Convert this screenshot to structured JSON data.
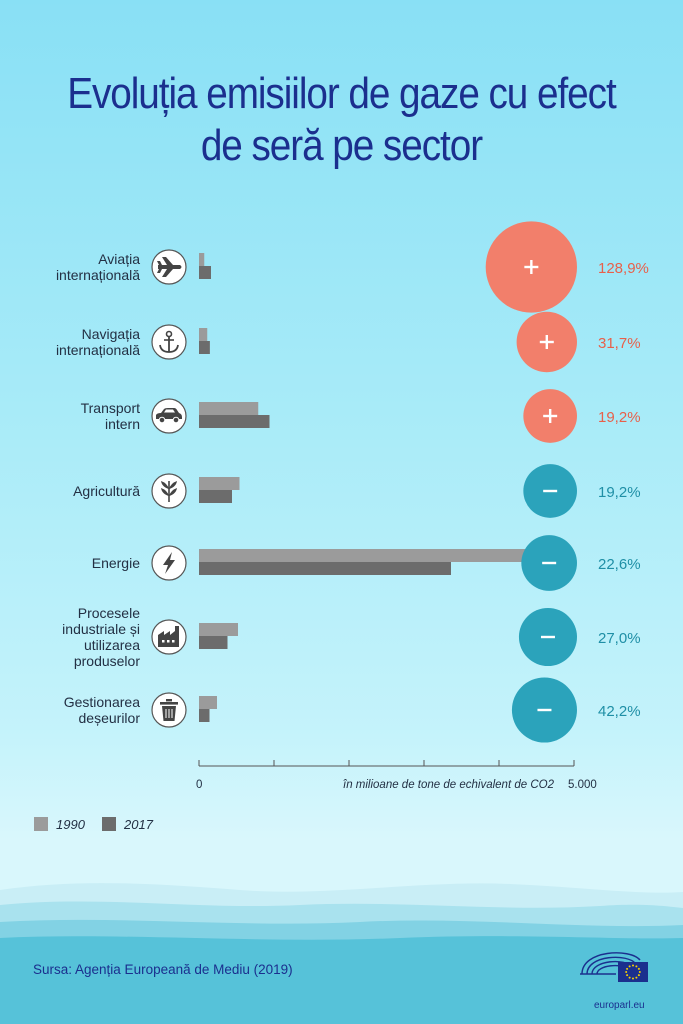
{
  "title_lines": [
    "Evoluția emisiilor de gaze cu efect",
    "de seră pe sector"
  ],
  "colors": {
    "title": "#1b2f8e",
    "bar_1990": "#9b9b9b",
    "bar_2017": "#6c6c6c",
    "increase": "#f27f6b",
    "decrease": "#2ba3bb",
    "increase_text": "#e8604a",
    "decrease_text": "#1f8fa6"
  },
  "chart_data": {
    "type": "bar",
    "orientation": "horizontal",
    "unit_label": "în milioane de tone de echivalent de CO2",
    "xlim": [
      0,
      5000
    ],
    "x_tick_labels": [
      "0",
      "5.000"
    ],
    "legend": [
      "1990",
      "2017"
    ],
    "categories": [
      {
        "name": "Aviația internațională",
        "lines": [
          "Aviația",
          "internațională"
        ],
        "icon": "airplane-icon",
        "v1990": 70,
        "v2017": 160,
        "change": "128,9%",
        "sign": "+",
        "magnitude": 128.9
      },
      {
        "name": "Navigația internațională",
        "lines": [
          "Navigația",
          "internațională"
        ],
        "icon": "anchor-icon",
        "v1990": 110,
        "v2017": 145,
        "change": "31,7%",
        "sign": "+",
        "magnitude": 31.7
      },
      {
        "name": "Transport intern",
        "lines": [
          "Transport",
          "intern"
        ],
        "icon": "car-icon",
        "v1990": 790,
        "v2017": 940,
        "change": "19,2%",
        "sign": "+",
        "magnitude": 19.2
      },
      {
        "name": "Agricultură",
        "lines": [
          "Agricultură"
        ],
        "icon": "plant-icon",
        "v1990": 540,
        "v2017": 440,
        "change": "19,2%",
        "sign": "-",
        "magnitude": 19.2
      },
      {
        "name": "Energie",
        "lines": [
          "Energie"
        ],
        "icon": "lightning-icon",
        "v1990": 4380,
        "v2017": 3360,
        "change": "22,6%",
        "sign": "-",
        "magnitude": 22.6
      },
      {
        "name": "Procesele industriale și utilizarea produselor",
        "lines": [
          "Procesele",
          "industriale și",
          "utilizarea",
          "produselor"
        ],
        "icon": "factory-icon",
        "v1990": 520,
        "v2017": 380,
        "change": "27,0%",
        "sign": "-",
        "magnitude": 27.0
      },
      {
        "name": "Gestionarea deșeurilor",
        "lines": [
          "Gestionarea",
          "deșeurilor"
        ],
        "icon": "trash-icon",
        "v1990": 240,
        "v2017": 140,
        "change": "42,2%",
        "sign": "-",
        "magnitude": 42.2
      }
    ]
  },
  "source": "Sursa: Agenția Europeană de Mediu (2019)",
  "footer_url": "europarl.eu"
}
